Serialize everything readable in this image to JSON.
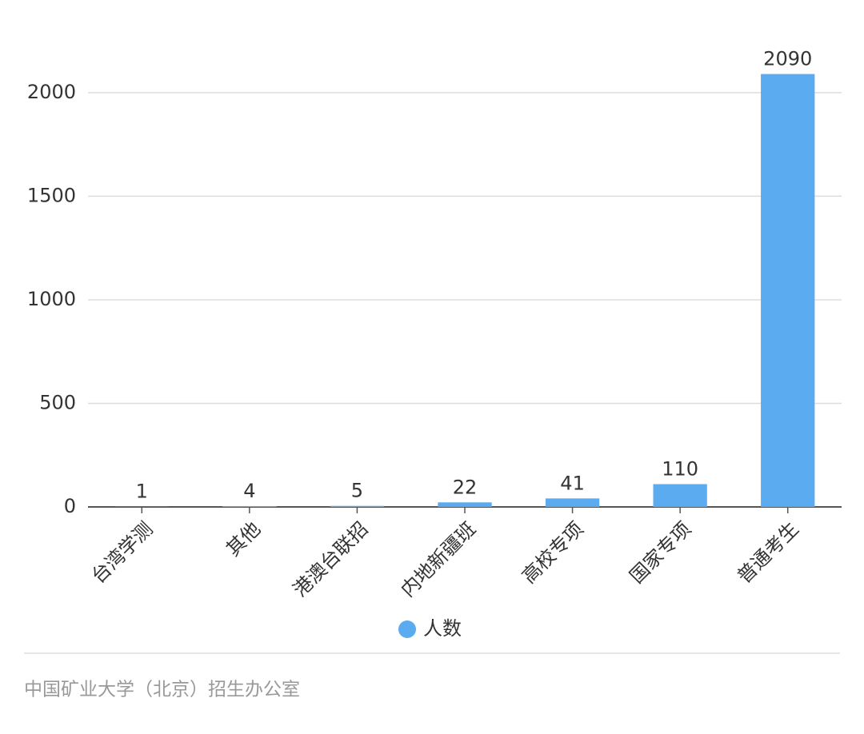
{
  "chart_data": {
    "type": "bar",
    "categories": [
      "台湾学测",
      "其他",
      "港澳台联招",
      "内地新疆班",
      "高校专项",
      "国家专项",
      "普通考生"
    ],
    "series": [
      {
        "name": "人数",
        "color": "#5aabf0",
        "values": [
          1,
          4,
          5,
          22,
          41,
          110,
          2090
        ]
      }
    ],
    "ylim": [
      0,
      2100
    ],
    "yticks": [
      0,
      500,
      1000,
      1500,
      2000
    ],
    "grid": true,
    "legend": "bottom",
    "source": "中国矿业大学（北京）招生办公室"
  }
}
